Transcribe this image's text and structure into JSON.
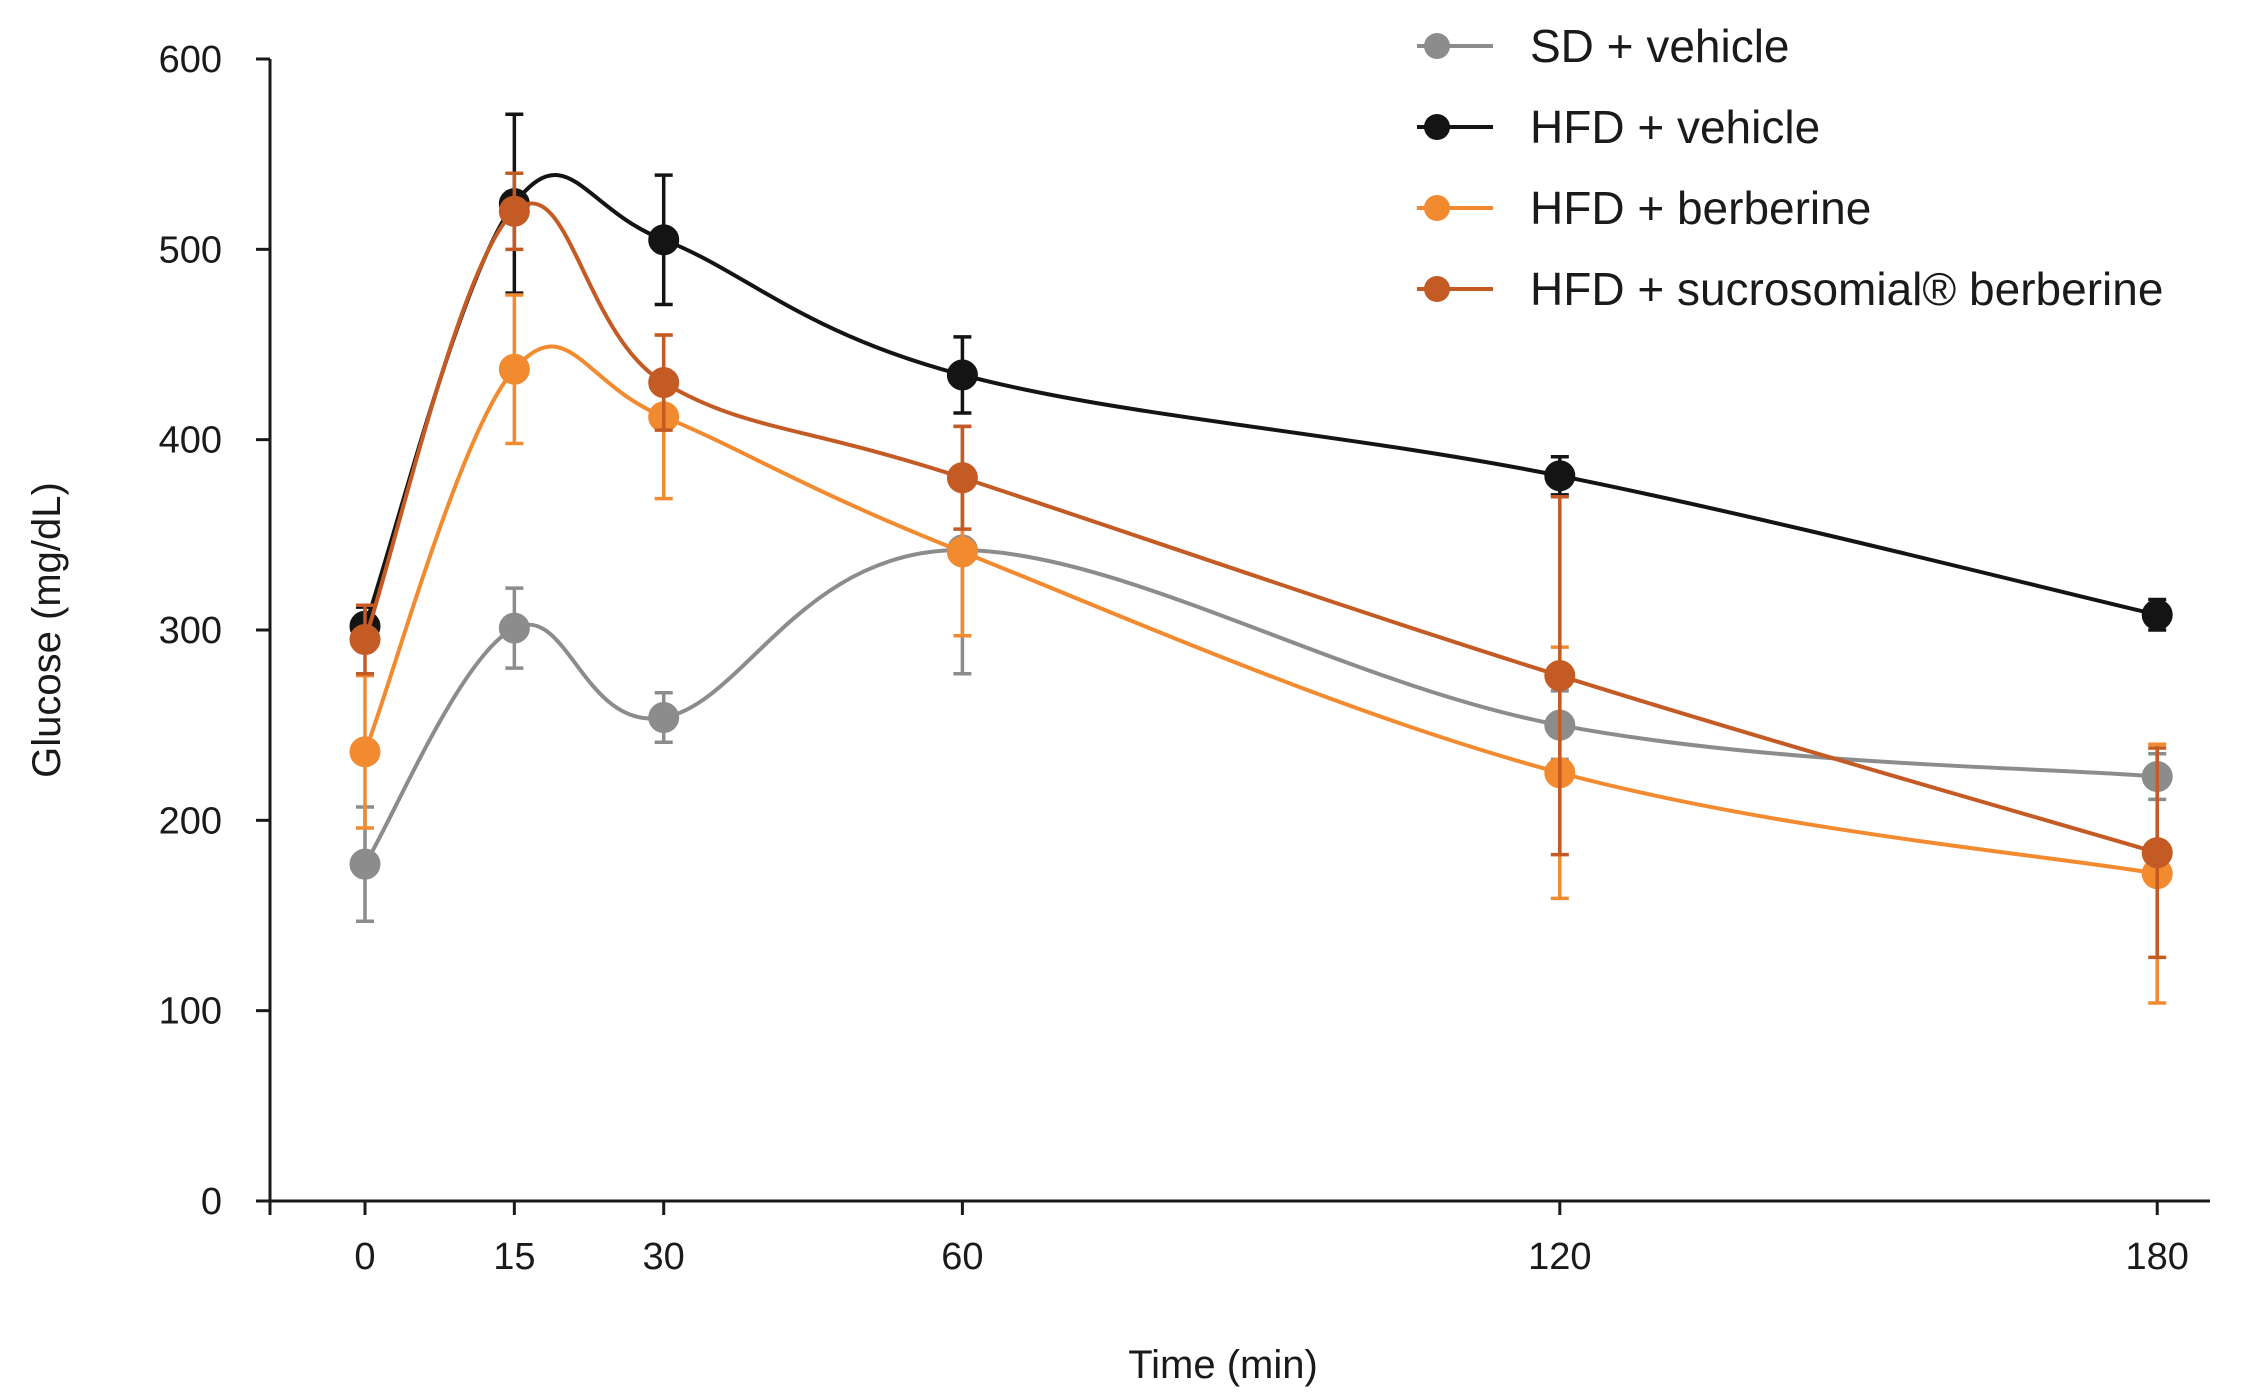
{
  "chart_data": {
    "type": "line",
    "title": "",
    "xlabel": "Time (min)",
    "ylabel": "Glucose (mg/dL)",
    "xlim": [
      -10,
      180
    ],
    "ylim": [
      0,
      600
    ],
    "xticks": [
      0,
      15,
      30,
      60,
      120,
      180
    ],
    "xtick_labels": [
      "0",
      "15",
      "30",
      "60",
      "120",
      "180"
    ],
    "yticks": [
      0,
      100,
      200,
      300,
      400,
      500,
      600
    ],
    "ytick_labels": [
      "0",
      "100",
      "200",
      "300",
      "400",
      "500",
      "600"
    ],
    "legend_position": "top-right",
    "grid": false,
    "series": [
      {
        "name": "SD + vehicle",
        "color": "#8c8c8c",
        "x": [
          0,
          15,
          30,
          60,
          120,
          180
        ],
        "values": [
          177,
          301,
          254,
          342,
          250,
          223
        ],
        "error": [
          30,
          21,
          13,
          65,
          18,
          12
        ]
      },
      {
        "name": "HFD + vehicle",
        "color": "#141414",
        "x": [
          0,
          15,
          30,
          60,
          120,
          180
        ],
        "values": [
          302,
          524,
          505,
          434,
          381,
          308
        ],
        "error": [
          10,
          47,
          34,
          20,
          10,
          8
        ]
      },
      {
        "name": "HFD + berberine",
        "color": "#f28a30",
        "x": [
          0,
          15,
          30,
          60,
          120,
          180
        ],
        "values": [
          236,
          437,
          412,
          341,
          225,
          172
        ],
        "error": [
          40,
          39,
          43,
          44,
          66,
          68
        ]
      },
      {
        "name": "HFD + sucrosomial® berberine",
        "color": "#c45a24",
        "x": [
          0,
          15,
          30,
          60,
          120,
          180
        ],
        "values": [
          295,
          520,
          430,
          380,
          276,
          183
        ],
        "error": [
          18,
          20,
          25,
          27,
          94,
          55
        ]
      }
    ]
  }
}
